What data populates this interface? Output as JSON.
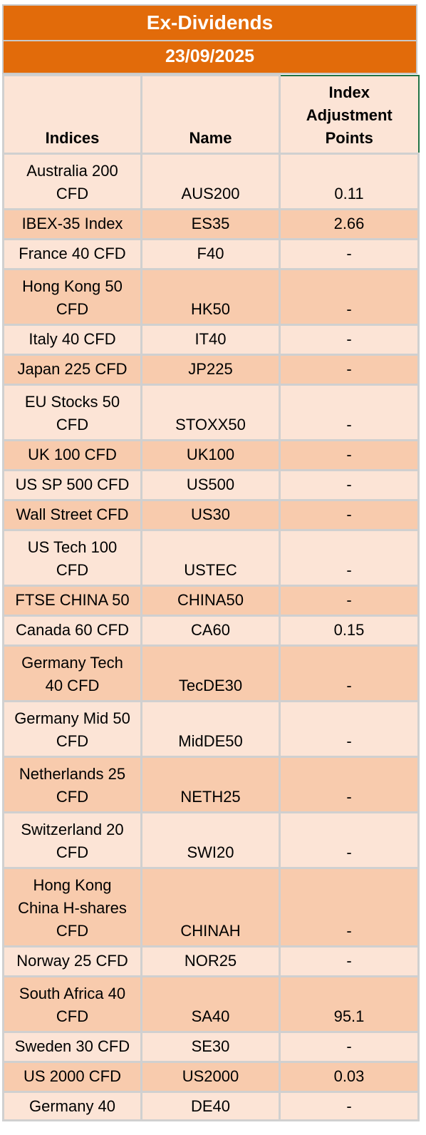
{
  "title": "Ex-Dividends",
  "date": "23/09/2025",
  "headers": {
    "indices": "Indices",
    "name": "Name",
    "adjustment": "Index Adjustment Points"
  },
  "rows": [
    {
      "index": "Australia 200 CFD",
      "name": "AUS200",
      "points": "0.11"
    },
    {
      "index": "IBEX-35 Index",
      "name": "ES35",
      "points": "2.66"
    },
    {
      "index": "France 40 CFD",
      "name": "F40",
      "points": "-"
    },
    {
      "index": "Hong Kong 50 CFD",
      "name": "HK50",
      "points": "-"
    },
    {
      "index": "Italy 40 CFD",
      "name": "IT40",
      "points": "-"
    },
    {
      "index": "Japan 225 CFD",
      "name": "JP225",
      "points": "-"
    },
    {
      "index": "EU Stocks 50 CFD",
      "name": "STOXX50",
      "points": "-"
    },
    {
      "index": "UK 100 CFD",
      "name": "UK100",
      "points": "-"
    },
    {
      "index": "US SP 500 CFD",
      "name": "US500",
      "points": "-"
    },
    {
      "index": "Wall Street CFD",
      "name": "US30",
      "points": "-"
    },
    {
      "index": "US Tech 100 CFD",
      "name": "USTEC",
      "points": "-"
    },
    {
      "index": "FTSE CHINA 50",
      "name": "CHINA50",
      "points": "-"
    },
    {
      "index": "Canada 60 CFD",
      "name": "CA60",
      "points": "0.15"
    },
    {
      "index": "Germany Tech 40 CFD",
      "name": "TecDE30",
      "points": "-"
    },
    {
      "index": "Germany Mid 50 CFD",
      "name": "MidDE50",
      "points": "-"
    },
    {
      "index": "Netherlands 25 CFD",
      "name": "NETH25",
      "points": "-"
    },
    {
      "index": "Switzerland 20 CFD",
      "name": "SWI20",
      "points": "-"
    },
    {
      "index": "Hong Kong China H-shares CFD",
      "name": "CHINAH",
      "points": "-"
    },
    {
      "index": "Norway 25 CFD",
      "name": "NOR25",
      "points": "-"
    },
    {
      "index": "South Africa 40 CFD",
      "name": "SA40",
      "points": "95.1"
    },
    {
      "index": "Sweden 30 CFD",
      "name": "SE30",
      "points": "-"
    },
    {
      "index": "US 2000 CFD",
      "name": "US2000",
      "points": "0.03"
    },
    {
      "index": "Germany 40",
      "name": "DE40",
      "points": "-"
    }
  ]
}
